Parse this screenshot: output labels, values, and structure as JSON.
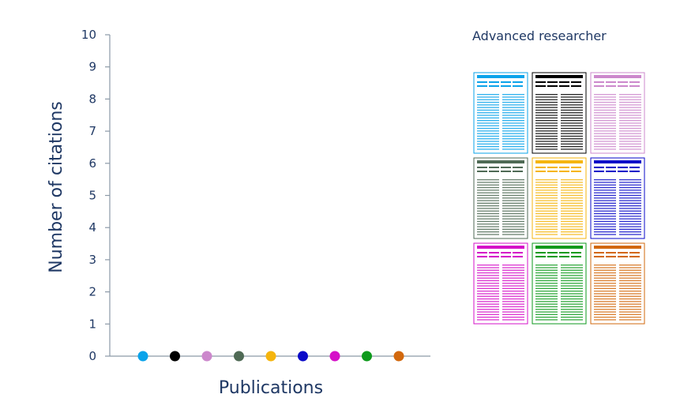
{
  "chart_data": {
    "type": "scatter",
    "title": "",
    "xlabel": "Publications",
    "ylabel": "Number of citations",
    "ylim": [
      0,
      10
    ],
    "yticks": [
      "0",
      "1",
      "2",
      "3",
      "4",
      "5",
      "6",
      "7",
      "8",
      "9",
      "10"
    ],
    "grid": false,
    "series": [
      {
        "color": "#0aa3ea",
        "x": 1,
        "y": 0
      },
      {
        "color": "#000000",
        "x": 2,
        "y": 0
      },
      {
        "color": "#cc88cc",
        "x": 3,
        "y": 0
      },
      {
        "color": "#4f6a55",
        "x": 4,
        "y": 0
      },
      {
        "color": "#f5b50e",
        "x": 5,
        "y": 0
      },
      {
        "color": "#0a0ac8",
        "x": 6,
        "y": 0
      },
      {
        "color": "#d510c8",
        "x": 7,
        "y": 0
      },
      {
        "color": "#0e9a1c",
        "x": 8,
        "y": 0
      },
      {
        "color": "#d2680d",
        "x": 9,
        "y": 0
      }
    ]
  },
  "legend": {
    "title": "Advanced researcher",
    "placement": "right",
    "paper_icon": "document-page-icon"
  },
  "colors": {
    "axis": "#8c9aa8",
    "text": "#1f3864"
  }
}
